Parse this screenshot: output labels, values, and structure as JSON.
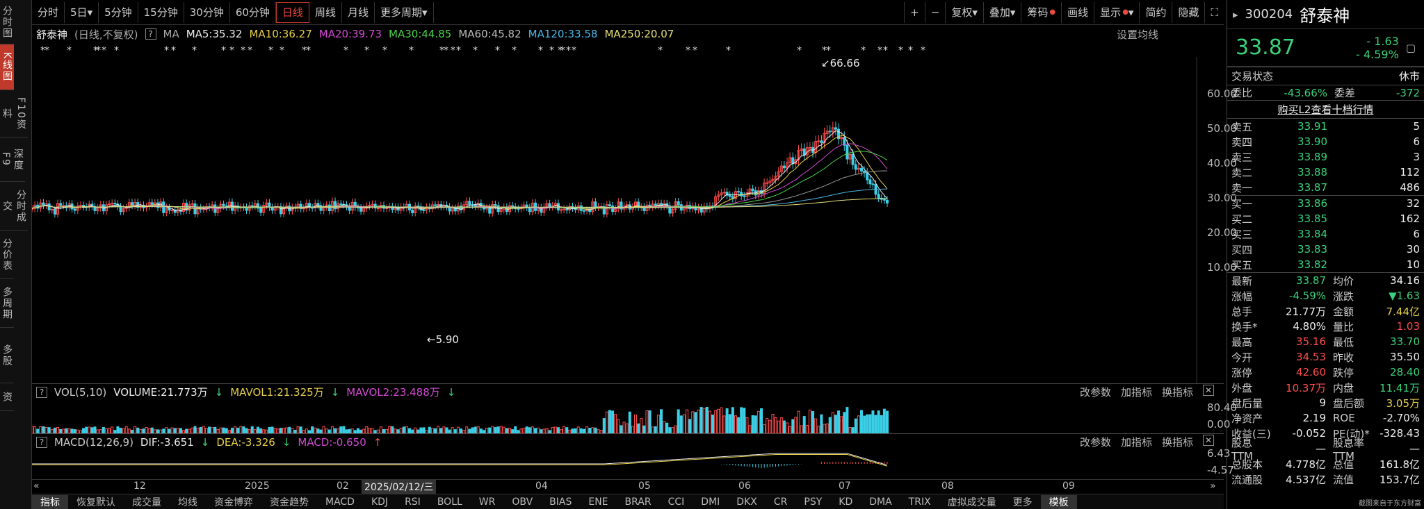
{
  "leftnav": [
    {
      "label": "分时图",
      "active": false
    },
    {
      "label": "K线图",
      "active": true
    },
    {
      "label": "F10资料",
      "active": false
    },
    {
      "label": "深度F9",
      "active": false
    },
    {
      "label": "分时成交",
      "active": false
    },
    {
      "label": "分价表",
      "active": false
    },
    {
      "label": "多周期",
      "active": false
    },
    {
      "label": "多股",
      "active": false
    },
    {
      "label": "资",
      "active": false
    }
  ],
  "toolbar": {
    "periods": [
      "分时",
      "5日",
      "5分钟",
      "15分钟",
      "30分钟",
      "60分钟",
      "日线",
      "周线",
      "月线",
      "更多周期"
    ],
    "active_period": "日线",
    "plus": "+",
    "minus": "−",
    "right": [
      "复权",
      "叠加",
      "筹码",
      "画线",
      "显示",
      "简约",
      "隐藏"
    ]
  },
  "ma": {
    "name": "舒泰神",
    "mode": "(日线,不复权)",
    "label": "MA",
    "ma5": "MA5:35.32",
    "ma10": "MA10:36.27",
    "ma20": "MA20:39.73",
    "ma30": "MA30:44.85",
    "ma60": "MA60:45.82",
    "ma120": "MA120:33.58",
    "ma250": "MA250:20.07",
    "settings": "设置均线"
  },
  "star": "*",
  "kline": {
    "max_label": "66.66",
    "min_label": "5.90",
    "yticks": [
      "60.00",
      "50.00",
      "40.00",
      "30.00",
      "20.00",
      "10.00"
    ]
  },
  "volume": {
    "label": "VOL(5,10)",
    "v": "VOLUME:21.773万",
    "m1": "MAVOL1:21.325万",
    "m2": "MAVOL2:23.488万",
    "yticks": [
      "80.40",
      "0.00"
    ]
  },
  "macd": {
    "label": "MACD(12,26,9)",
    "dif": "DIF:-3.651",
    "dea": "DEA:-3.326",
    "macd": "MACD:-0.650",
    "yticks": [
      "6.43",
      "-4.57"
    ]
  },
  "panel_buttons": [
    "改参数",
    "加指标",
    "换指标"
  ],
  "xaxis": {
    "labels": [
      "12",
      "2025",
      "02",
      "2025/02/12/三",
      "04",
      "05",
      "06",
      "07",
      "08",
      "09"
    ]
  },
  "indicators": [
    "指标",
    "恢复默认",
    "成交量",
    "均线",
    "资金博弈",
    "资金趋势",
    "MACD",
    "KDJ",
    "RSI",
    "BOLL",
    "WR",
    "OBV",
    "BIAS",
    "ENE",
    "BRAR",
    "CCI",
    "DMI",
    "DKX",
    "CR",
    "PSY",
    "KD",
    "DMA",
    "TRIX",
    "虚拟成交量",
    "更多",
    "模板"
  ],
  "quote": {
    "code": "300204",
    "name": "舒泰神",
    "price": "33.87",
    "change": "- 1.63",
    "pct": "- 4.59%",
    "status_label": "交易状态",
    "status": "休市",
    "wb_label": "委比",
    "wb": "-43.66%",
    "wc_label": "委差",
    "wc": "-372",
    "l2": "购买L2查看十档行情",
    "asks": [
      {
        "n": "卖五",
        "p": "33.91",
        "v": "5"
      },
      {
        "n": "卖四",
        "p": "33.90",
        "v": "6"
      },
      {
        "n": "卖三",
        "p": "33.89",
        "v": "3"
      },
      {
        "n": "卖二",
        "p": "33.88",
        "v": "112"
      },
      {
        "n": "卖一",
        "p": "33.87",
        "v": "486"
      }
    ],
    "bids": [
      {
        "n": "买一",
        "p": "33.86",
        "v": "32"
      },
      {
        "n": "买二",
        "p": "33.85",
        "v": "162"
      },
      {
        "n": "买三",
        "p": "33.84",
        "v": "6"
      },
      {
        "n": "买四",
        "p": "33.83",
        "v": "30"
      },
      {
        "n": "买五",
        "p": "33.82",
        "v": "10"
      }
    ],
    "stats": [
      [
        "最新",
        "33.87",
        "均价",
        "34.16"
      ],
      [
        "涨幅",
        "-4.59%",
        "涨跌",
        "▼1.63"
      ],
      [
        "总手",
        "21.77万",
        "金额",
        "7.44亿"
      ],
      [
        "换手*",
        "4.80%",
        "量比",
        "1.03"
      ],
      [
        "最高",
        "35.16",
        "最低",
        "33.70"
      ],
      [
        "今开",
        "34.53",
        "昨收",
        "35.50"
      ],
      [
        "涨停",
        "42.60",
        "跌停",
        "28.40"
      ],
      [
        "外盘",
        "10.37万",
        "内盘",
        "11.41万"
      ],
      [
        "盘后量",
        "9",
        "盘后额",
        "3.05万"
      ],
      [
        "净资产",
        "2.19",
        "ROE",
        "-2.70%"
      ],
      [
        "收益(三)",
        "-0.052",
        "PE(动)*",
        "-328.43"
      ],
      [
        "股息TTM",
        "—",
        "股息率TTM",
        "—"
      ],
      [
        "总股本",
        "4.778亿",
        "总值",
        "161.8亿"
      ],
      [
        "流通股",
        "4.537亿",
        "流值",
        "153.7亿"
      ]
    ],
    "watermark": "截图来自于东方财富"
  }
}
